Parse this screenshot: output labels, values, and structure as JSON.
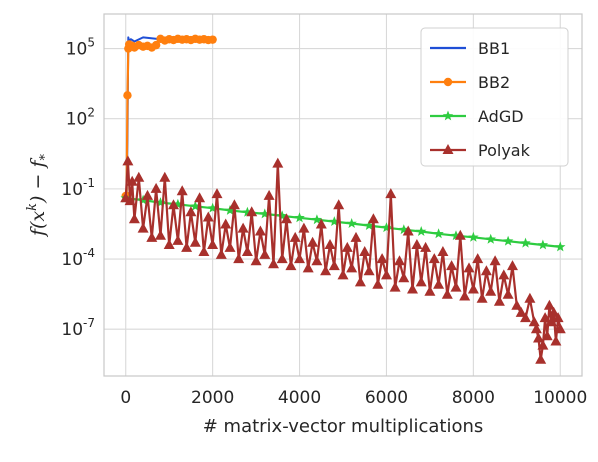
{
  "chart_data": {
    "type": "line",
    "title": "",
    "xlabel": "# matrix-vector multiplications",
    "ylabel": "f(x^k) − f_*",
    "xlim": [
      -500,
      10500
    ],
    "ylim": [
      1e-09,
      3000000.0
    ],
    "yscale": "log",
    "grid": true,
    "legend_position": "top-right",
    "x_ticks": [
      {
        "value": 0,
        "label": "0"
      },
      {
        "value": 2000,
        "label": "2000"
      },
      {
        "value": 4000,
        "label": "4000"
      },
      {
        "value": 6000,
        "label": "6000"
      },
      {
        "value": 8000,
        "label": "8000"
      },
      {
        "value": 10000,
        "label": "10000"
      }
    ],
    "y_ticks": [
      {
        "value": 100000,
        "base": "10",
        "exp": "5"
      },
      {
        "value": 100,
        "base": "10",
        "exp": "2"
      },
      {
        "value": 0.1,
        "base": "10",
        "exp": "-1"
      },
      {
        "value": 0.0001,
        "base": "10",
        "exp": "-4"
      },
      {
        "value": 1e-07,
        "base": "10",
        "exp": "-7"
      }
    ],
    "series": [
      {
        "name": "BB1",
        "color": "#1f4fd6",
        "marker": "none",
        "x": [
          0,
          20,
          40,
          60,
          80,
          120,
          200,
          400,
          800,
          1200,
          1600,
          2000
        ],
        "y": [
          0.05,
          0.05,
          20,
          300000,
          200000,
          250000,
          200000,
          300000,
          250000,
          300000,
          260000,
          280000
        ]
      },
      {
        "name": "BB2",
        "color": "#ff7f0e",
        "marker": "circle",
        "x": [
          0,
          20,
          40,
          60,
          80,
          100,
          150,
          200,
          300,
          400,
          500,
          600,
          700,
          800,
          900,
          1000,
          1100,
          1200,
          1300,
          1400,
          1500,
          1600,
          1700,
          1800,
          1900,
          2000
        ],
        "y": [
          0.05,
          0.05,
          1000,
          100000,
          150000,
          120000,
          130000,
          110000,
          140000,
          120000,
          130000,
          110000,
          140000,
          260000,
          220000,
          250000,
          230000,
          260000,
          240000,
          250000,
          230000,
          260000,
          240000,
          250000,
          230000,
          240000
        ]
      },
      {
        "name": "AdGD",
        "color": "#2ecc40",
        "marker": "star",
        "x": [
          0,
          400,
          800,
          1200,
          1600,
          2000,
          2400,
          2800,
          3200,
          3600,
          4000,
          4400,
          4800,
          5200,
          5600,
          6000,
          6400,
          6800,
          7200,
          7600,
          8000,
          8400,
          8800,
          9200,
          9600,
          10000
        ],
        "y": [
          0.04,
          0.033,
          0.026,
          0.022,
          0.018,
          0.015,
          0.012,
          0.01,
          0.0085,
          0.007,
          0.0058,
          0.0048,
          0.004,
          0.0033,
          0.0027,
          0.0022,
          0.0018,
          0.0015,
          0.0012,
          0.001,
          0.00085,
          0.0007,
          0.00058,
          0.00048,
          0.0004,
          0.00033
        ]
      },
      {
        "name": "Polyak",
        "color": "#a8302c",
        "marker": "triangle",
        "x": [
          0,
          50,
          100,
          150,
          200,
          300,
          400,
          500,
          600,
          700,
          800,
          900,
          1000,
          1100,
          1200,
          1300,
          1400,
          1500,
          1600,
          1700,
          1800,
          1900,
          2000,
          2100,
          2200,
          2300,
          2400,
          2500,
          2600,
          2700,
          2800,
          2900,
          3000,
          3100,
          3200,
          3300,
          3400,
          3500,
          3600,
          3700,
          3800,
          3900,
          4000,
          4100,
          4200,
          4300,
          4400,
          4500,
          4600,
          4700,
          4800,
          4900,
          5000,
          5100,
          5200,
          5300,
          5400,
          5500,
          5600,
          5700,
          5800,
          5900,
          6000,
          6100,
          6200,
          6300,
          6400,
          6500,
          6600,
          6700,
          6800,
          6900,
          7000,
          7100,
          7200,
          7300,
          7400,
          7500,
          7600,
          7700,
          7800,
          7900,
          8000,
          8100,
          8200,
          8300,
          8400,
          8500,
          8600,
          8700,
          8800,
          8900,
          9000,
          9100,
          9200,
          9300,
          9400,
          9450,
          9500,
          9550,
          9600,
          9650,
          9700,
          9750,
          9800,
          9850,
          9900,
          9950,
          10000
        ],
        "y": [
          0.04,
          1.5,
          0.03,
          0.2,
          0.005,
          0.3,
          0.002,
          0.05,
          0.0008,
          0.1,
          0.001,
          0.3,
          0.0004,
          0.02,
          0.0006,
          0.08,
          0.0003,
          0.01,
          0.0005,
          0.04,
          0.0002,
          0.006,
          0.0004,
          0.06,
          0.00015,
          0.003,
          0.0003,
          0.02,
          0.0001,
          0.002,
          0.0002,
          0.01,
          8e-05,
          0.0015,
          0.00015,
          0.05,
          6e-05,
          1.2,
          0.0001,
          0.005,
          5e-05,
          0.0008,
          0.0001,
          0.002,
          4e-05,
          0.0005,
          8e-05,
          0.003,
          3e-05,
          0.0004,
          5e-05,
          0.02,
          2e-05,
          0.0003,
          4e-05,
          0.0008,
          1e-05,
          0.0002,
          3e-05,
          0.005,
          8e-06,
          0.0001,
          2e-05,
          0.06,
          6e-06,
          8e-05,
          1.5e-05,
          0.0015,
          5e-06,
          0.0004,
          1e-05,
          0.0003,
          4e-06,
          0.0001,
          8e-06,
          0.0002,
          3e-06,
          5e-05,
          6e-06,
          0.001,
          2.5e-06,
          4e-05,
          5e-06,
          0.0001,
          2e-06,
          3e-05,
          4e-06,
          8e-05,
          1.5e-06,
          2e-05,
          3e-06,
          5e-05,
          1e-06,
          5e-07,
          3e-07,
          2e-06,
          2e-07,
          1e-07,
          4e-08,
          5e-09,
          2e-08,
          3e-07,
          5e-08,
          1e-06,
          2e-07,
          5e-07,
          3e-08,
          3e-07,
          1e-07
        ]
      }
    ]
  }
}
